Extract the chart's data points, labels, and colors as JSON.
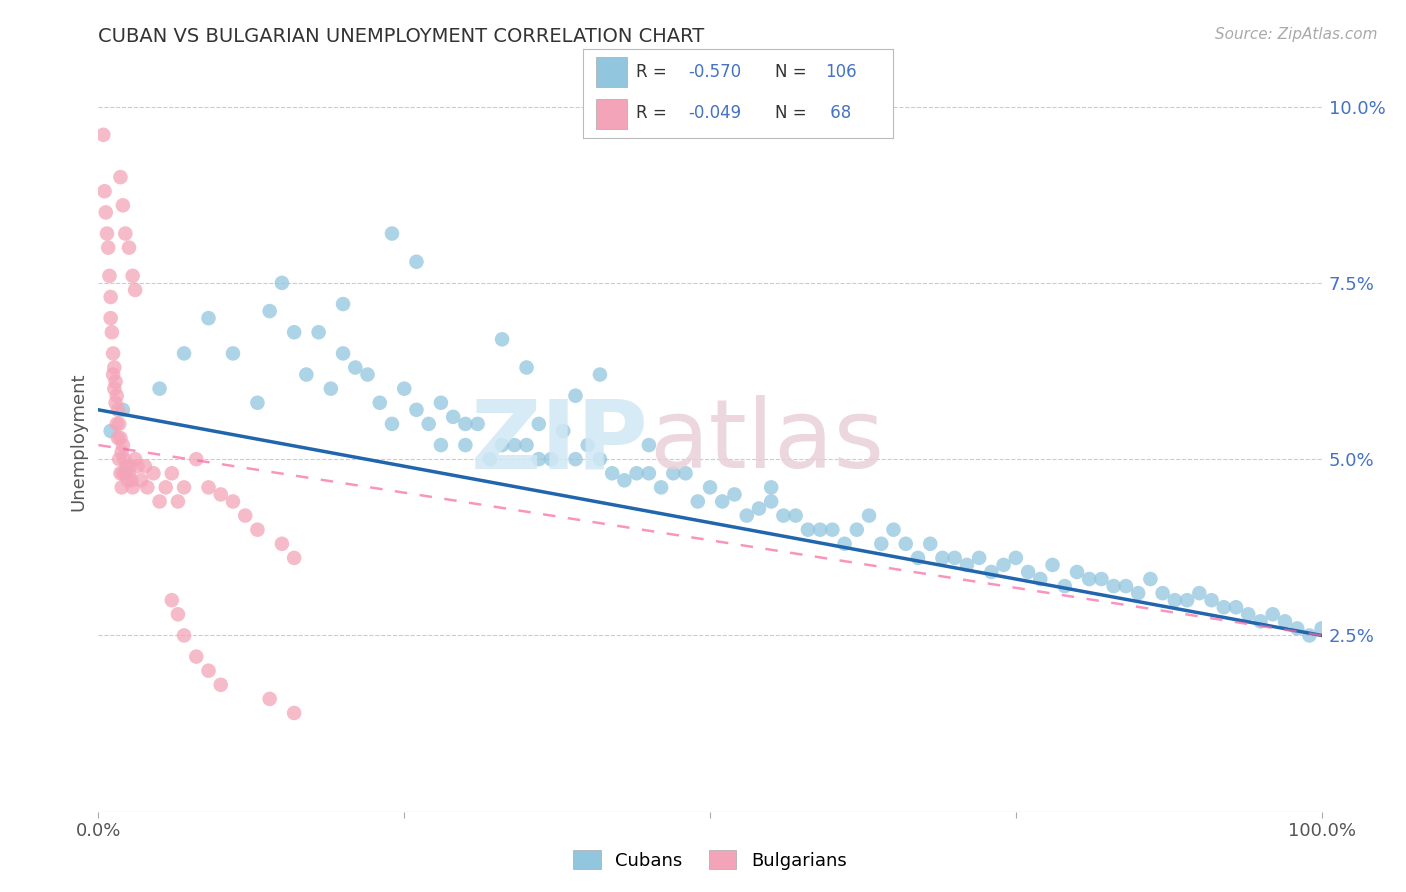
{
  "title": "CUBAN VS BULGARIAN UNEMPLOYMENT CORRELATION CHART",
  "source": "Source: ZipAtlas.com",
  "ylabel": "Unemployment",
  "right_yticks": [
    "2.5%",
    "5.0%",
    "7.5%",
    "10.0%"
  ],
  "right_ytick_values": [
    0.025,
    0.05,
    0.075,
    0.1
  ],
  "xlim": [
    0.0,
    1.0
  ],
  "ylim": [
    0.0,
    0.105
  ],
  "cubans_R": "-0.570",
  "cubans_N": "106",
  "bulgarians_R": "-0.049",
  "bulgarians_N": "68",
  "cubans_color": "#92c5de",
  "bulgarians_color": "#f4a4b8",
  "cubans_line_color": "#2166ac",
  "bulgarians_line_color": "#f768a1",
  "watermark_zip": "ZIP",
  "watermark_atlas": "atlas",
  "legend_cubans_label": "Cubans",
  "legend_bulgarians_label": "Bulgarians",
  "cubans_line_x0": 0.0,
  "cubans_line_y0": 0.057,
  "cubans_line_x1": 1.0,
  "cubans_line_y1": 0.025,
  "bulgarians_line_x0": 0.0,
  "bulgarians_line_y0": 0.052,
  "bulgarians_line_x1": 1.0,
  "bulgarians_line_y1": 0.025,
  "cubans_scatter_x": [
    0.01,
    0.02,
    0.05,
    0.07,
    0.09,
    0.11,
    0.13,
    0.14,
    0.15,
    0.16,
    0.17,
    0.18,
    0.19,
    0.2,
    0.2,
    0.21,
    0.22,
    0.23,
    0.24,
    0.25,
    0.26,
    0.27,
    0.28,
    0.28,
    0.29,
    0.3,
    0.3,
    0.31,
    0.32,
    0.33,
    0.34,
    0.35,
    0.36,
    0.36,
    0.37,
    0.38,
    0.39,
    0.4,
    0.41,
    0.42,
    0.43,
    0.44,
    0.45,
    0.45,
    0.46,
    0.47,
    0.48,
    0.49,
    0.5,
    0.51,
    0.52,
    0.53,
    0.54,
    0.55,
    0.55,
    0.56,
    0.57,
    0.58,
    0.59,
    0.6,
    0.61,
    0.62,
    0.63,
    0.64,
    0.65,
    0.66,
    0.67,
    0.68,
    0.69,
    0.7,
    0.71,
    0.72,
    0.73,
    0.74,
    0.75,
    0.76,
    0.77,
    0.78,
    0.79,
    0.8,
    0.81,
    0.82,
    0.83,
    0.84,
    0.85,
    0.86,
    0.87,
    0.88,
    0.89,
    0.9,
    0.91,
    0.92,
    0.93,
    0.94,
    0.95,
    0.96,
    0.97,
    0.98,
    0.99,
    1.0,
    0.24,
    0.26,
    0.33,
    0.35,
    0.39,
    0.41
  ],
  "cubans_scatter_y": [
    0.054,
    0.057,
    0.06,
    0.065,
    0.07,
    0.065,
    0.058,
    0.071,
    0.075,
    0.068,
    0.062,
    0.068,
    0.06,
    0.072,
    0.065,
    0.063,
    0.062,
    0.058,
    0.055,
    0.06,
    0.057,
    0.055,
    0.052,
    0.058,
    0.056,
    0.055,
    0.052,
    0.055,
    0.05,
    0.052,
    0.052,
    0.052,
    0.05,
    0.055,
    0.05,
    0.054,
    0.05,
    0.052,
    0.05,
    0.048,
    0.047,
    0.048,
    0.048,
    0.052,
    0.046,
    0.048,
    0.048,
    0.044,
    0.046,
    0.044,
    0.045,
    0.042,
    0.043,
    0.044,
    0.046,
    0.042,
    0.042,
    0.04,
    0.04,
    0.04,
    0.038,
    0.04,
    0.042,
    0.038,
    0.04,
    0.038,
    0.036,
    0.038,
    0.036,
    0.036,
    0.035,
    0.036,
    0.034,
    0.035,
    0.036,
    0.034,
    0.033,
    0.035,
    0.032,
    0.034,
    0.033,
    0.033,
    0.032,
    0.032,
    0.031,
    0.033,
    0.031,
    0.03,
    0.03,
    0.031,
    0.03,
    0.029,
    0.029,
    0.028,
    0.027,
    0.028,
    0.027,
    0.026,
    0.025,
    0.026,
    0.082,
    0.078,
    0.067,
    0.063,
    0.059,
    0.062
  ],
  "bulgarians_scatter_x": [
    0.004,
    0.005,
    0.006,
    0.007,
    0.008,
    0.009,
    0.01,
    0.01,
    0.011,
    0.012,
    0.012,
    0.013,
    0.013,
    0.014,
    0.014,
    0.015,
    0.015,
    0.016,
    0.016,
    0.017,
    0.017,
    0.018,
    0.018,
    0.019,
    0.019,
    0.02,
    0.02,
    0.021,
    0.022,
    0.023,
    0.024,
    0.025,
    0.026,
    0.027,
    0.028,
    0.03,
    0.032,
    0.035,
    0.038,
    0.04,
    0.045,
    0.05,
    0.055,
    0.06,
    0.065,
    0.07,
    0.08,
    0.09,
    0.1,
    0.11,
    0.12,
    0.13,
    0.15,
    0.16,
    0.018,
    0.02,
    0.022,
    0.025,
    0.028,
    0.03,
    0.06,
    0.065,
    0.07,
    0.08,
    0.09,
    0.1,
    0.14,
    0.16
  ],
  "bulgarians_scatter_y": [
    0.096,
    0.088,
    0.085,
    0.082,
    0.08,
    0.076,
    0.073,
    0.07,
    0.068,
    0.065,
    0.062,
    0.063,
    0.06,
    0.061,
    0.058,
    0.059,
    0.055,
    0.057,
    0.053,
    0.055,
    0.05,
    0.053,
    0.048,
    0.051,
    0.046,
    0.052,
    0.048,
    0.05,
    0.048,
    0.049,
    0.047,
    0.048,
    0.049,
    0.047,
    0.046,
    0.05,
    0.049,
    0.047,
    0.049,
    0.046,
    0.048,
    0.044,
    0.046,
    0.048,
    0.044,
    0.046,
    0.05,
    0.046,
    0.045,
    0.044,
    0.042,
    0.04,
    0.038,
    0.036,
    0.09,
    0.086,
    0.082,
    0.08,
    0.076,
    0.074,
    0.03,
    0.028,
    0.025,
    0.022,
    0.02,
    0.018,
    0.016,
    0.014
  ]
}
